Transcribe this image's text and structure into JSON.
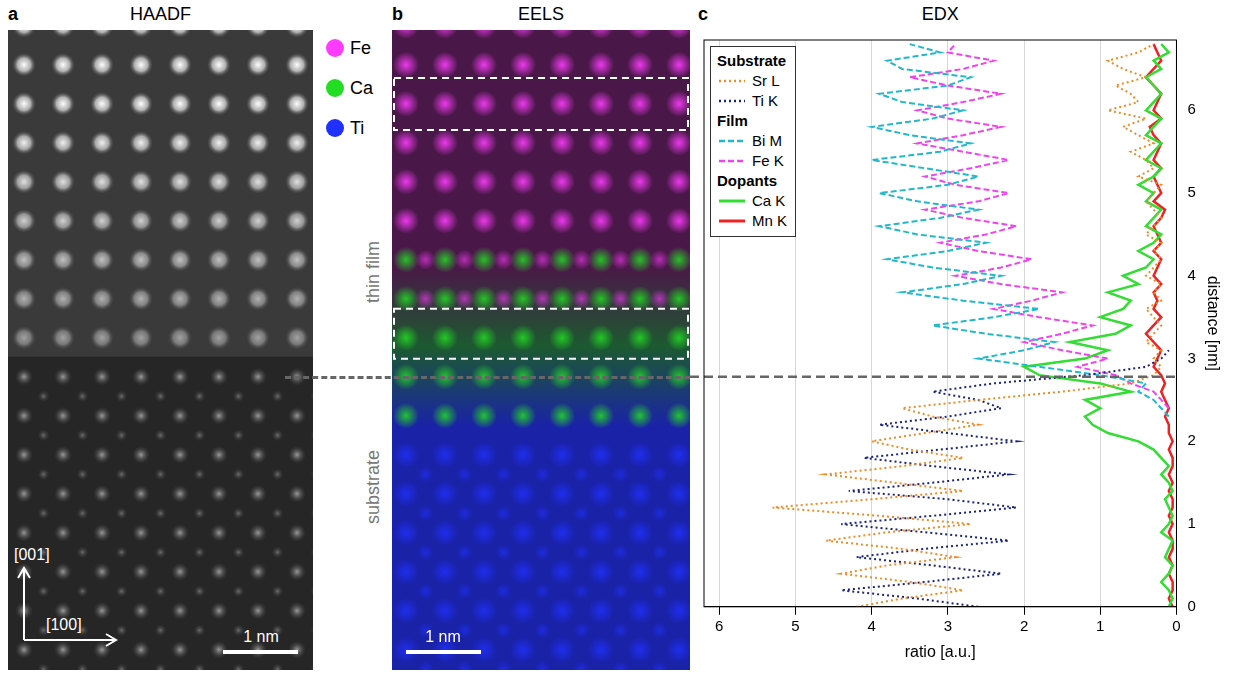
{
  "panels": [
    {
      "letter": "a",
      "title": "HAADF",
      "directions": [
        "[001]",
        "[100]"
      ],
      "scale_bar": "1 nm"
    },
    {
      "letter": "b",
      "title": "EELS",
      "scale_bar": "1 nm",
      "color_key": [
        {
          "label": "Fe",
          "color": "#ff3cff"
        },
        {
          "label": "Ca",
          "color": "#22dd22"
        },
        {
          "label": "Ti",
          "color": "#2030ff"
        }
      ]
    },
    {
      "letter": "c",
      "title": "EDX"
    }
  ],
  "region_labels": [
    "thin film",
    "substrate"
  ],
  "chart_data": {
    "type": "line",
    "x_label": "ratio [a.u.]",
    "y_label": "distance [nm]",
    "xlim": [
      6.2,
      0
    ],
    "xticks": [
      0,
      1,
      2,
      3,
      4,
      5,
      6
    ],
    "ylim": [
      0,
      6.85
    ],
    "yticks": [
      0,
      1,
      2,
      3,
      4,
      5,
      6
    ],
    "grid": true,
    "legend": "upper left",
    "interface_distance": 2.78,
    "legend_groups": [
      {
        "title": "Substrate",
        "series": [
          "Sr L",
          "Ti K"
        ]
      },
      {
        "title": "Film",
        "series": [
          "Bi M",
          "Fe K"
        ]
      },
      {
        "title": "Dopants",
        "series": [
          "Ca K",
          "Mn K"
        ]
      }
    ],
    "y": [
      0,
      0.1,
      0.2,
      0.3,
      0.4,
      0.5,
      0.6,
      0.7,
      0.8,
      0.9,
      1.0,
      1.1,
      1.2,
      1.3,
      1.4,
      1.5,
      1.6,
      1.7,
      1.8,
      1.9,
      2.0,
      2.1,
      2.2,
      2.3,
      2.4,
      2.5,
      2.6,
      2.7,
      2.8,
      2.9,
      3.0,
      3.1,
      3.2,
      3.3,
      3.4,
      3.5,
      3.6,
      3.7,
      3.8,
      3.9,
      4.0,
      4.1,
      4.2,
      4.3,
      4.4,
      4.5,
      4.6,
      4.7,
      4.8,
      4.9,
      5.0,
      5.1,
      5.2,
      5.3,
      5.4,
      5.5,
      5.6,
      5.7,
      5.8,
      5.9,
      6.0,
      6.1,
      6.2,
      6.3,
      6.4,
      6.5,
      6.6,
      6.7,
      6.8
    ],
    "series": [
      {
        "name": "Sr L",
        "color": "#f08a24",
        "line_style": "dotted",
        "values": [
          4.2,
          3.6,
          2.8,
          3.5,
          4.4,
          3.8,
          2.9,
          3.6,
          4.6,
          3.8,
          2.7,
          3.9,
          5.3,
          4.0,
          2.8,
          3.7,
          4.6,
          3.6,
          2.8,
          3.5,
          4.0,
          3.3,
          2.6,
          3.2,
          3.6,
          2.6,
          1.5,
          0.6,
          0.3,
          0.2,
          0.3,
          0.2,
          0.4,
          0.3,
          0.2,
          0.3,
          0.4,
          0.2,
          0.3,
          0.2,
          0.4,
          0.3,
          0.2,
          0.3,
          0.2,
          0.4,
          0.3,
          0.2,
          0.3,
          0.4,
          0.3,
          0.2,
          0.5,
          0.3,
          0.4,
          0.6,
          0.3,
          0.5,
          0.7,
          0.4,
          0.9,
          0.5,
          0.6,
          0.8,
          0.4,
          0.7,
          0.9,
          0.5,
          0.3
        ]
      },
      {
        "name": "Ti K",
        "color": "#1a237e",
        "line_style": "dotted",
        "values": [
          2.6,
          3.4,
          4.4,
          3.3,
          2.3,
          3.2,
          4.2,
          3.3,
          2.2,
          3.3,
          4.4,
          3.2,
          2.1,
          3.0,
          4.3,
          3.2,
          2.2,
          3.2,
          4.1,
          3.1,
          2.1,
          3.0,
          3.9,
          3.0,
          2.3,
          2.6,
          3.2,
          2.4,
          1.2,
          0.4,
          0.2,
          0.1,
          null,
          null,
          null,
          null,
          null,
          null,
          null,
          null,
          null,
          null,
          null,
          null,
          null,
          null,
          null,
          null,
          null,
          null,
          null,
          null,
          null,
          null,
          null,
          null,
          null,
          null,
          null,
          null,
          null,
          null,
          null,
          null,
          null,
          null,
          null,
          null,
          null
        ]
      },
      {
        "name": "Bi M",
        "color": "#22b8cc",
        "line_style": "dashed",
        "values": [
          null,
          null,
          null,
          null,
          null,
          null,
          null,
          null,
          null,
          null,
          null,
          null,
          null,
          null,
          null,
          null,
          null,
          null,
          null,
          null,
          null,
          null,
          null,
          0.1,
          0.2,
          0.3,
          0.5,
          0.4,
          1.0,
          1.8,
          2.6,
          2.0,
          1.6,
          2.5,
          3.2,
          2.4,
          1.8,
          2.8,
          3.6,
          2.8,
          2.3,
          3.2,
          3.8,
          3.0,
          2.5,
          3.4,
          3.9,
          3.1,
          2.6,
          3.4,
          3.9,
          3.0,
          2.6,
          3.3,
          4.0,
          3.1,
          2.7,
          3.5,
          4.0,
          3.2,
          2.8,
          3.6,
          3.9,
          3.0,
          2.7,
          3.6,
          3.8,
          3.1,
          3.5
        ]
      },
      {
        "name": "Fe K",
        "color": "#ee44ee",
        "line_style": "dashed",
        "values": [
          null,
          null,
          null,
          null,
          null,
          null,
          null,
          null,
          null,
          null,
          null,
          null,
          null,
          null,
          null,
          null,
          null,
          null,
          null,
          null,
          null,
          null,
          null,
          null,
          0.1,
          0.2,
          0.3,
          0.6,
          0.8,
          1.3,
          0.9,
          1.5,
          2.0,
          1.5,
          1.1,
          1.8,
          2.4,
          1.9,
          1.5,
          2.3,
          2.9,
          2.3,
          1.9,
          2.6,
          3.1,
          2.5,
          2.1,
          2.8,
          3.3,
          2.6,
          2.2,
          2.9,
          3.3,
          2.7,
          2.2,
          2.8,
          3.4,
          2.8,
          2.3,
          3.0,
          3.4,
          2.8,
          2.3,
          3.0,
          3.5,
          2.8,
          2.4,
          3.0,
          2.9
        ]
      },
      {
        "name": "Ca K",
        "color": "#33dd33",
        "line_style": "solid",
        "values": [
          0.1,
          0.05,
          0.1,
          0.2,
          0.1,
          0.05,
          0.15,
          0.1,
          0.05,
          0.2,
          0.1,
          0.05,
          0.1,
          0.15,
          0.05,
          0.1,
          0.2,
          0.1,
          0.2,
          0.3,
          0.5,
          0.9,
          1.1,
          1.2,
          1.0,
          1.2,
          0.6,
          1.0,
          1.8,
          2.0,
          1.2,
          0.9,
          1.4,
          0.8,
          0.6,
          1.0,
          0.7,
          0.6,
          0.9,
          0.5,
          0.7,
          0.4,
          0.3,
          0.5,
          0.3,
          0.2,
          0.4,
          0.3,
          0.2,
          0.4,
          0.3,
          0.5,
          0.3,
          0.2,
          0.4,
          0.3,
          0.2,
          0.4,
          0.3,
          0.2,
          0.4,
          0.3,
          0.2,
          0.3,
          0.4,
          0.2,
          0.3,
          0.1,
          0.2
        ]
      },
      {
        "name": "Mn K",
        "color": "#ee2222",
        "line_style": "solid",
        "values": [
          0.05,
          0.1,
          0.05,
          0.05,
          0.1,
          0.05,
          0.1,
          0.05,
          0.05,
          0.1,
          0.05,
          0.1,
          0.05,
          0.05,
          0.1,
          0.05,
          0.1,
          0.05,
          0.05,
          0.1,
          0.05,
          0.1,
          0.1,
          0.15,
          0.1,
          0.15,
          0.2,
          0.15,
          0.2,
          0.3,
          0.25,
          0.2,
          0.3,
          0.4,
          0.3,
          0.2,
          0.3,
          0.25,
          0.3,
          0.2,
          0.3,
          0.25,
          0.2,
          0.3,
          0.2,
          0.25,
          0.3,
          0.2,
          0.15,
          0.3,
          0.2,
          0.25,
          0.3,
          0.2,
          0.3,
          0.25,
          0.2,
          0.3,
          0.35,
          0.2,
          0.3,
          0.25,
          0.2,
          0.3,
          0.4,
          0.3,
          0.2,
          0.25,
          0.3
        ]
      }
    ]
  }
}
